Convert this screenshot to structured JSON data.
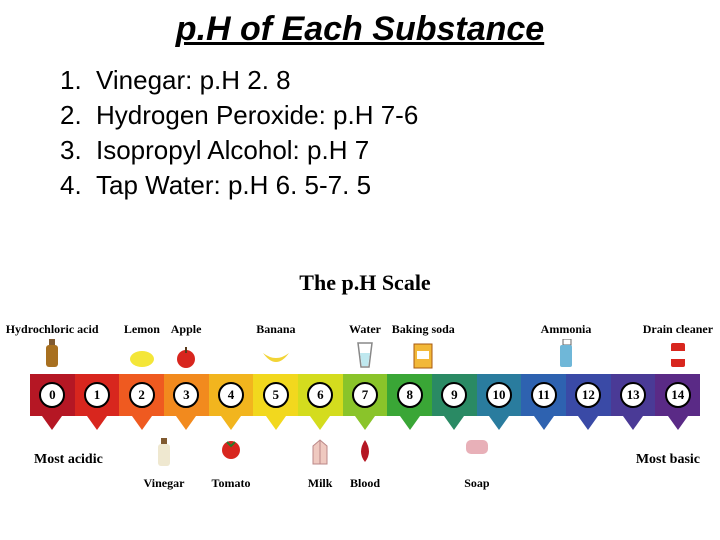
{
  "title": "p.H of Each Substance",
  "list": [
    {
      "num": "1.",
      "text": "Vinegar: p.H 2. 8"
    },
    {
      "num": "2.",
      "text": "Hydrogen Peroxide: p.H 7-6"
    },
    {
      "num": "3.",
      "text": "Isopropyl Alcohol: p.H 7"
    },
    {
      "num": "4.",
      "text": "Tap Water: p.H 6. 5-7. 5"
    }
  ],
  "scale": {
    "title": "The p.H Scale",
    "top_items": [
      {
        "label": "Hydrochloric acid",
        "pos_pct": 3.3,
        "icon": "bottle",
        "icon_color": "#a87020"
      },
      {
        "label": "Lemon",
        "pos_pct": 16.7,
        "icon": "lemon",
        "icon_color": "#f4e638"
      },
      {
        "label": "Apple",
        "pos_pct": 23.3,
        "icon": "apple",
        "icon_color": "#d8261e"
      },
      {
        "label": "Banana",
        "pos_pct": 36.7,
        "icon": "banana",
        "icon_color": "#f2d436"
      },
      {
        "label": "Water",
        "pos_pct": 50.0,
        "icon": "glass",
        "icon_color": "#bfe8ef"
      },
      {
        "label": "Baking soda",
        "pos_pct": 58.7,
        "icon": "box",
        "icon_color": "#f2b838"
      },
      {
        "label": "Ammonia",
        "pos_pct": 80.0,
        "icon": "spray",
        "icon_color": "#6fb7d8"
      },
      {
        "label": "Drain cleaner",
        "pos_pct": 96.7,
        "icon": "can",
        "icon_color": "#d8261e"
      }
    ],
    "segments": [
      {
        "num": "0",
        "color": "#b51724"
      },
      {
        "num": "1",
        "color": "#d8261e"
      },
      {
        "num": "2",
        "color": "#ef5a20"
      },
      {
        "num": "3",
        "color": "#f28a1e"
      },
      {
        "num": "4",
        "color": "#f2b51e"
      },
      {
        "num": "5",
        "color": "#f2d81e"
      },
      {
        "num": "6",
        "color": "#d4dc1e"
      },
      {
        "num": "7",
        "color": "#8ac42a"
      },
      {
        "num": "8",
        "color": "#3aa636"
      },
      {
        "num": "9",
        "color": "#2a8a64"
      },
      {
        "num": "10",
        "color": "#2a7c9e"
      },
      {
        "num": "11",
        "color": "#2e62b0"
      },
      {
        "num": "12",
        "color": "#3a4aa6"
      },
      {
        "num": "13",
        "color": "#4a3a96"
      },
      {
        "num": "14",
        "color": "#5a2a86"
      }
    ],
    "bottom_items": [
      {
        "label": "Vinegar",
        "pos_pct": 20.0,
        "icon": "bottle",
        "icon_color": "#efe8d0"
      },
      {
        "label": "Tomato",
        "pos_pct": 30.0,
        "icon": "tomato",
        "icon_color": "#d8261e"
      },
      {
        "label": "Milk",
        "pos_pct": 43.3,
        "icon": "carton",
        "icon_color": "#efc9c0"
      },
      {
        "label": "Blood",
        "pos_pct": 50.0,
        "icon": "drop",
        "icon_color": "#b51724"
      },
      {
        "label": "Soap",
        "pos_pct": 66.7,
        "icon": "soap",
        "icon_color": "#e8b0b8"
      }
    ],
    "endcaps": {
      "left": "Most acidic",
      "right": "Most basic"
    },
    "colors": {
      "background": "#ffffff",
      "text": "#000000"
    }
  }
}
